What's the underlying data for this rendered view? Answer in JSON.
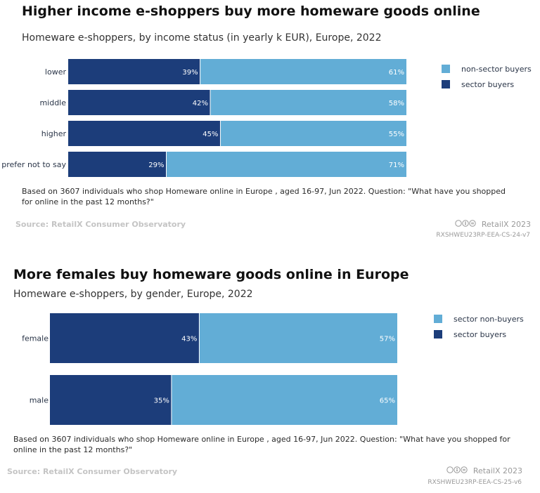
{
  "chart_data": [
    {
      "type": "bar",
      "orientation": "horizontal",
      "stacked": true,
      "title": "Higher income e-shoppers buy more homeware goods online",
      "subtitle": "Homeware e-shoppers, by income status (in yearly k EUR), Europe, 2022",
      "categories": [
        "lower",
        "middle",
        "higher",
        "prefer not to say"
      ],
      "series": [
        {
          "name": "sector buyers",
          "values": [
            39,
            42,
            45,
            29
          ],
          "color": "#1c3d7a"
        },
        {
          "name": "non-sector buyers",
          "values": [
            61,
            58,
            55,
            71
          ],
          "color": "#62add6"
        }
      ],
      "legend": [
        "non-sector buyers",
        "sector buyers"
      ],
      "value_suffix": "%",
      "xlim": [
        0,
        100
      ],
      "note": "Based on 3607 individuals who shop Homeware online in Europe , aged 16-97, Jun 2022. Question: \"What have you shopped for online in the past 12 months?\"",
      "source": "Source: RetailX Consumer Observatory",
      "brand": "RetailX 2023",
      "code": "RXSHWEU23RP-EEA-CS-24-v7"
    },
    {
      "type": "bar",
      "orientation": "horizontal",
      "stacked": true,
      "title": "More females buy homeware goods online in Europe",
      "subtitle": "Homeware e-shoppers, by gender, Europe, 2022",
      "categories": [
        "female",
        "male"
      ],
      "series": [
        {
          "name": "sector buyers",
          "values": [
            43,
            35
          ],
          "color": "#1c3d7a"
        },
        {
          "name": "sector non-buyers",
          "values": [
            57,
            65
          ],
          "color": "#62add6"
        }
      ],
      "legend": [
        "sector non-buyers",
        "sector buyers"
      ],
      "value_suffix": "%",
      "xlim": [
        0,
        100
      ],
      "note": "Based on 3607 individuals who shop Homeware online in Europe , aged 16-97, Jun 2022. Question: \"What have you shopped for online in the past 12 months?\"",
      "source": "Source: RetailX Consumer Observatory",
      "brand": "RetailX 2023",
      "code": "RXSHWEU23RP-EEA-CS-25-v6"
    }
  ],
  "license_icon": "cc-by-nd-icon"
}
